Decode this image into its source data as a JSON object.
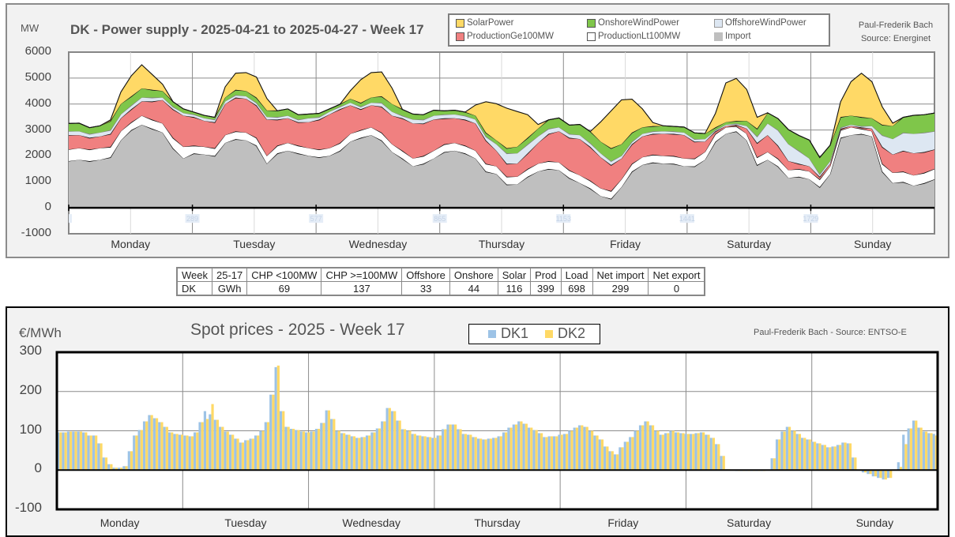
{
  "power_panel": {
    "unit_label": "MW",
    "title": "DK - Power supply - 2025-04-21 to 2025-04-27 - Week 17",
    "credit_line1": "Paul-Frederik Bach",
    "credit_line2": "Source: Energinet",
    "legend": [
      {
        "label": "SolarPower",
        "color": "#ffd966"
      },
      {
        "label": "OnshoreWindPower",
        "color": "#7fc64a"
      },
      {
        "label": "OffshoreWindPower",
        "color": "#dde7f2"
      },
      {
        "label": "ProductionGe100MW",
        "color": "#f08080"
      },
      {
        "label": "ProductionLt100MW",
        "color": "#ffffff"
      },
      {
        "label": "Import",
        "color": "#bfbfbf"
      }
    ]
  },
  "summary_table": {
    "header": [
      "Week",
      "25-17",
      "CHP <100MW",
      "CHP >=100MW",
      "Offshore",
      "Onshore",
      "Solar",
      "Prod",
      "Load",
      "Net import",
      "Net export"
    ],
    "row": [
      "DK",
      "GWh",
      "69",
      "137",
      "33",
      "44",
      "116",
      "399",
      "698",
      "299",
      "0"
    ]
  },
  "spot_panel": {
    "unit_label": "€/MWh",
    "title": "Spot prices - 2025 - Week 17",
    "credit": "Paul-Frederik Bach - Source: ENTSO-E"
  },
  "chart_data": [
    {
      "type": "area",
      "stacked": true,
      "title": "DK - Power supply - 2025-04-21 to 2025-04-27 - Week 17",
      "ylabel": "MW",
      "ylim": [
        -1000,
        6000
      ],
      "yticks": [
        "6000",
        "5000",
        "4000",
        "3000",
        "2000",
        "1000",
        "0",
        "-1000"
      ],
      "x_resolution": "2-hour steps (84 points over 7 days)",
      "x_index_ticks": [
        "1",
        "289",
        "577",
        "865",
        "1153",
        "1441",
        "1729"
      ],
      "categories": [
        "Monday",
        "Tuesday",
        "Wednesday",
        "Thursday",
        "Friday",
        "Saturday",
        "Sunday"
      ],
      "grid": true,
      "legend_position": "top-right",
      "series": [
        {
          "name": "Import",
          "color": "#bfbfbf",
          "values": [
            1800,
            1850,
            1800,
            1850,
            1950,
            2600,
            3000,
            3200,
            3050,
            2900,
            2300,
            1900,
            2100,
            2050,
            2000,
            2500,
            2650,
            2600,
            2400,
            1700,
            2100,
            2200,
            2100,
            2000,
            1950,
            2000,
            2200,
            2550,
            2700,
            2800,
            2600,
            2150,
            1900,
            1600,
            1700,
            1900,
            2150,
            2200,
            2100,
            1900,
            1400,
            1300,
            900,
            900,
            1200,
            1400,
            1500,
            1450,
            1150,
            950,
            750,
            450,
            350,
            800,
            1400,
            1650,
            1750,
            1700,
            1700,
            1600,
            1600,
            1850,
            2550,
            2850,
            2950,
            2600,
            1650,
            1850,
            1600,
            1150,
            1200,
            1100,
            800,
            1300,
            2700,
            2800,
            2850,
            2750,
            1400,
            950,
            1000,
            850,
            950,
            1100
          ]
        },
        {
          "name": "ProductionLt100MW",
          "color": "#ffffff",
          "values": [
            450,
            450,
            450,
            450,
            400,
            350,
            300,
            350,
            350,
            350,
            400,
            450,
            300,
            300,
            300,
            300,
            300,
            300,
            300,
            300,
            300,
            300,
            300,
            300,
            300,
            300,
            300,
            300,
            300,
            300,
            300,
            300,
            300,
            300,
            300,
            300,
            300,
            300,
            300,
            300,
            300,
            300,
            300,
            300,
            300,
            300,
            300,
            300,
            300,
            300,
            300,
            300,
            300,
            300,
            300,
            300,
            300,
            300,
            300,
            300,
            300,
            300,
            300,
            250,
            200,
            250,
            300,
            300,
            300,
            300,
            300,
            300,
            300,
            300,
            300,
            300,
            200,
            200,
            300,
            400,
            400,
            400,
            400,
            400
          ]
        },
        {
          "name": "ProductionGe100MW",
          "color": "#f08080",
          "values": [
            550,
            500,
            450,
            450,
            500,
            500,
            500,
            550,
            700,
            900,
            1100,
            1200,
            1100,
            1000,
            1000,
            1200,
            1300,
            1300,
            1250,
            1400,
            1000,
            950,
            900,
            1000,
            1150,
            1300,
            1300,
            1100,
            800,
            850,
            1000,
            1100,
            1250,
            1350,
            1250,
            1200,
            1000,
            950,
            1000,
            1050,
            900,
            600,
            500,
            500,
            600,
            800,
            1050,
            1200,
            1250,
            1400,
            1300,
            1200,
            1000,
            800,
            750,
            800,
            800,
            850,
            850,
            900,
            650,
            400,
            100,
            50,
            50,
            200,
            550,
            650,
            500,
            350,
            200,
            200,
            100,
            100,
            50,
            50,
            50,
            100,
            650,
            700,
            800,
            850,
            800,
            750
          ]
        },
        {
          "name": "OffshoreWindPower",
          "color": "#dde7f2",
          "values": [
            150,
            150,
            150,
            150,
            150,
            150,
            150,
            150,
            150,
            100,
            100,
            100,
            100,
            100,
            100,
            100,
            100,
            100,
            100,
            100,
            100,
            100,
            100,
            150,
            100,
            100,
            100,
            100,
            100,
            100,
            150,
            150,
            100,
            150,
            150,
            150,
            150,
            150,
            150,
            150,
            150,
            250,
            400,
            400,
            350,
            250,
            200,
            150,
            150,
            150,
            150,
            150,
            150,
            100,
            100,
            100,
            100,
            100,
            100,
            100,
            100,
            100,
            50,
            50,
            50,
            100,
            250,
            450,
            600,
            650,
            500,
            300,
            100,
            100,
            50,
            50,
            50,
            100,
            450,
            600,
            700,
            750,
            750,
            700
          ]
        },
        {
          "name": "OnshoreWindPower",
          "color": "#7fc64a",
          "values": [
            300,
            300,
            250,
            250,
            350,
            400,
            350,
            350,
            300,
            250,
            200,
            150,
            100,
            100,
            100,
            150,
            200,
            200,
            200,
            250,
            250,
            250,
            200,
            150,
            150,
            100,
            100,
            150,
            150,
            200,
            250,
            300,
            250,
            200,
            200,
            200,
            150,
            150,
            150,
            150,
            150,
            150,
            200,
            250,
            250,
            300,
            350,
            350,
            350,
            400,
            450,
            450,
            500,
            450,
            350,
            250,
            200,
            200,
            200,
            200,
            250,
            200,
            100,
            100,
            100,
            200,
            300,
            400,
            450,
            550,
            600,
            700,
            650,
            600,
            400,
            350,
            350,
            300,
            400,
            500,
            600,
            700,
            700,
            700
          ]
        },
        {
          "name": "SolarPower",
          "color": "#ffd966",
          "values": [
            0,
            0,
            0,
            0,
            50,
            450,
            800,
            900,
            600,
            250,
            0,
            0,
            0,
            0,
            0,
            400,
            650,
            700,
            800,
            450,
            0,
            0,
            0,
            0,
            0,
            0,
            0,
            300,
            900,
            950,
            950,
            600,
            0,
            0,
            0,
            0,
            0,
            0,
            0,
            400,
            1200,
            1400,
            1550,
            1350,
            900,
            150,
            0,
            0,
            0,
            0,
            0,
            750,
            1450,
            1700,
            1300,
            700,
            150,
            0,
            0,
            0,
            0,
            0,
            550,
            1500,
            1650,
            1200,
            450,
            0,
            0,
            0,
            0,
            0,
            0,
            0,
            600,
            1300,
            1700,
            1400,
            700,
            100,
            0,
            0,
            0,
            0
          ]
        }
      ]
    },
    {
      "type": "bar",
      "title": "Spot prices - 2025 - Week 17",
      "ylabel": "€/MWh",
      "ylim": [
        -100,
        300
      ],
      "yticks": [
        "300",
        "200",
        "100",
        "0",
        "-100"
      ],
      "categories": [
        "Monday",
        "Tuesday",
        "Wednesday",
        "Thursday",
        "Friday",
        "Saturday",
        "Sunday"
      ],
      "x_resolution": "hourly (168 hours)",
      "grid": true,
      "legend_position": "top-center",
      "series": [
        {
          "name": "DK1",
          "color": "#9dc3e6",
          "values": [
            96,
            96,
            98,
            98,
            98,
            96,
            88,
            88,
            68,
            32,
            15,
            6,
            6,
            10,
            48,
            88,
            102,
            124,
            140,
            132,
            122,
            110,
            96,
            92,
            90,
            88,
            86,
            96,
            122,
            150,
            142,
            128,
            110,
            98,
            90,
            80,
            70,
            76,
            80,
            88,
            100,
            122,
            192,
            262,
            150,
            110,
            105,
            102,
            98,
            96,
            98,
            105,
            120,
            152,
            130,
            100,
            94,
            90,
            86,
            82,
            84,
            88,
            96,
            106,
            124,
            158,
            150,
            126,
            104,
            100,
            92,
            88,
            86,
            84,
            82,
            88,
            104,
            116,
            116,
            104,
            92,
            90,
            84,
            80,
            78,
            80,
            82,
            86,
            96,
            108,
            116,
            124,
            118,
            108,
            102,
            94,
            84,
            86,
            86,
            90,
            92,
            100,
            108,
            114,
            110,
            100,
            88,
            78,
            60,
            48,
            40,
            58,
            72,
            84,
            100,
            114,
            124,
            114,
            100,
            90,
            94,
            100,
            96,
            94,
            92,
            92,
            94,
            96,
            90,
            82,
            66,
            36,
            2,
            0,
            -2,
            -2,
            -2,
            -2,
            -2,
            -2,
            0,
            30,
            78,
            98,
            110,
            100,
            92,
            82,
            78,
            72,
            68,
            64,
            58,
            60,
            64,
            70,
            68,
            32,
            0,
            -6,
            -10,
            -16,
            -20,
            -24,
            -20,
            0,
            20,
            90,
            106,
            126,
            108,
            98,
            94,
            92
          ]
        },
        {
          "name": "DK2",
          "color": "#ffd966",
          "values": [
            96,
            96,
            98,
            98,
            98,
            96,
            88,
            88,
            68,
            32,
            15,
            6,
            6,
            10,
            48,
            88,
            102,
            124,
            140,
            132,
            122,
            110,
            96,
            92,
            90,
            88,
            86,
            96,
            122,
            130,
            168,
            128,
            110,
            98,
            90,
            80,
            70,
            76,
            80,
            88,
            100,
            122,
            192,
            266,
            150,
            110,
            105,
            102,
            98,
            96,
            98,
            105,
            120,
            152,
            130,
            100,
            94,
            90,
            86,
            82,
            84,
            88,
            96,
            106,
            124,
            158,
            150,
            126,
            104,
            100,
            92,
            88,
            86,
            84,
            82,
            88,
            104,
            116,
            116,
            104,
            92,
            90,
            84,
            80,
            78,
            80,
            82,
            86,
            96,
            108,
            116,
            124,
            118,
            108,
            102,
            94,
            84,
            86,
            86,
            90,
            92,
            100,
            108,
            114,
            110,
            100,
            88,
            78,
            60,
            48,
            40,
            58,
            72,
            84,
            100,
            114,
            124,
            114,
            100,
            90,
            94,
            100,
            96,
            94,
            92,
            92,
            94,
            96,
            90,
            82,
            66,
            36,
            2,
            0,
            -2,
            -2,
            -2,
            -2,
            -2,
            -2,
            0,
            30,
            78,
            98,
            110,
            100,
            92,
            82,
            78,
            72,
            68,
            64,
            58,
            60,
            64,
            70,
            68,
            32,
            0,
            -6,
            -10,
            -16,
            -20,
            -24,
            -20,
            0,
            8,
            66,
            106,
            126,
            108,
            98,
            94,
            88
          ]
        }
      ]
    }
  ]
}
